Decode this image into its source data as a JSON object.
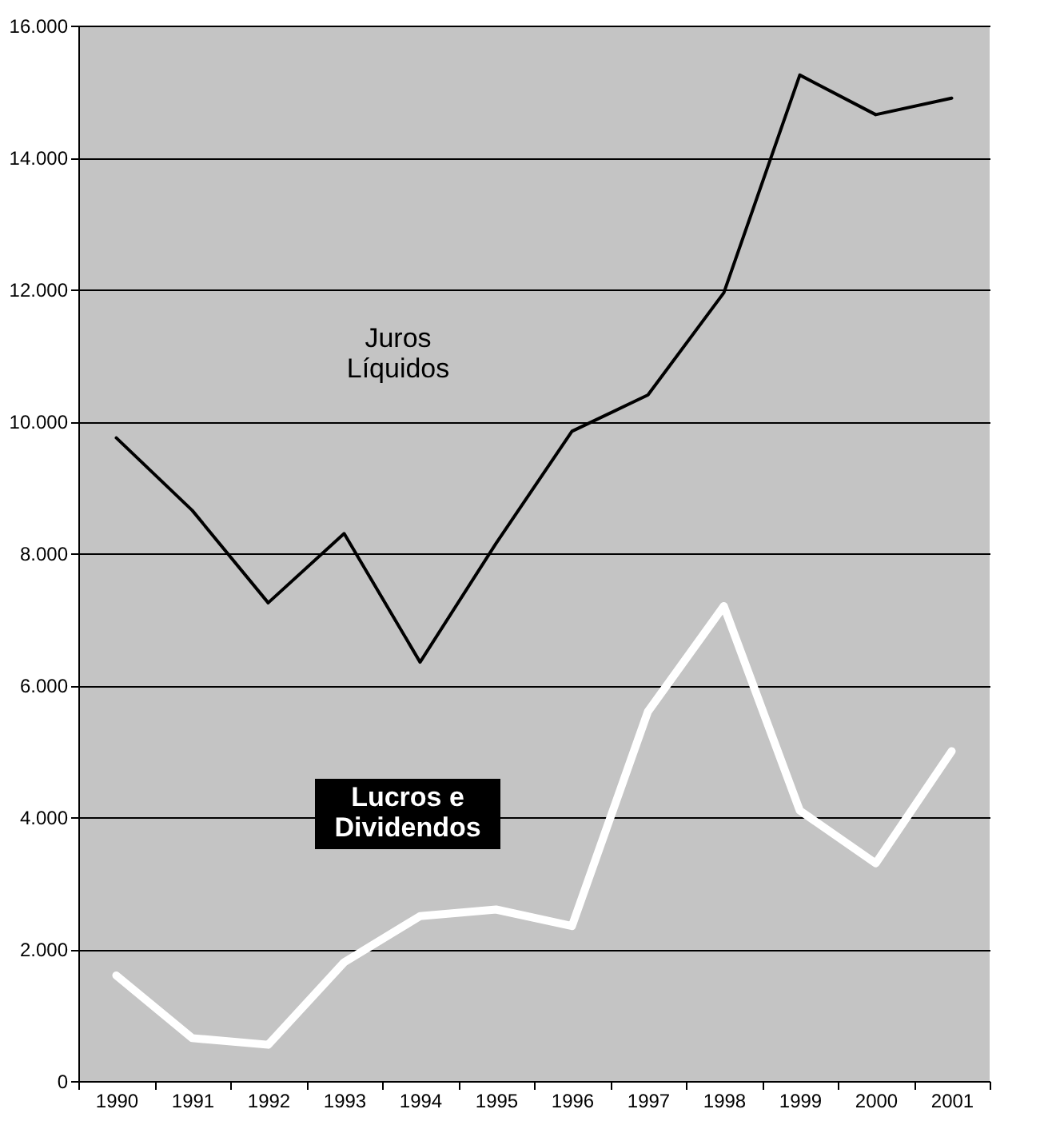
{
  "chart_data": {
    "type": "line",
    "categories": [
      "1990",
      "1991",
      "1992",
      "1993",
      "1994",
      "1995",
      "1996",
      "1997",
      "1998",
      "1999",
      "2000",
      "2001"
    ],
    "series": [
      {
        "name": "Juros\nLíquidos",
        "color": "#000000",
        "values": [
          9750,
          8650,
          7250,
          8300,
          6350,
          8150,
          9850,
          10400,
          11950,
          15250,
          14650,
          14900
        ]
      },
      {
        "name": "Lucros e\nDividendos",
        "color": "#ffffff",
        "values": [
          1600,
          650,
          550,
          1800,
          2500,
          2600,
          2350,
          5600,
          7200,
          4100,
          3300,
          5000
        ]
      }
    ],
    "ylim": [
      0,
      16000
    ],
    "yticks": [
      0,
      {
        "value": 2000,
        "label": "2.000"
      },
      {
        "value": 4000,
        "label": "4.000"
      },
      {
        "value": 6000,
        "label": "6.000"
      },
      {
        "value": 8000,
        "label": "8.000"
      },
      {
        "value": 10000,
        "label": "10.000"
      },
      {
        "value": 12000,
        "label": "12.000"
      },
      {
        "value": 14000,
        "label": "14.000"
      },
      {
        "value": 16000,
        "label": "16.000"
      }
    ],
    "grid": "y",
    "legend": false,
    "marker": "none",
    "line_style": "solid"
  }
}
